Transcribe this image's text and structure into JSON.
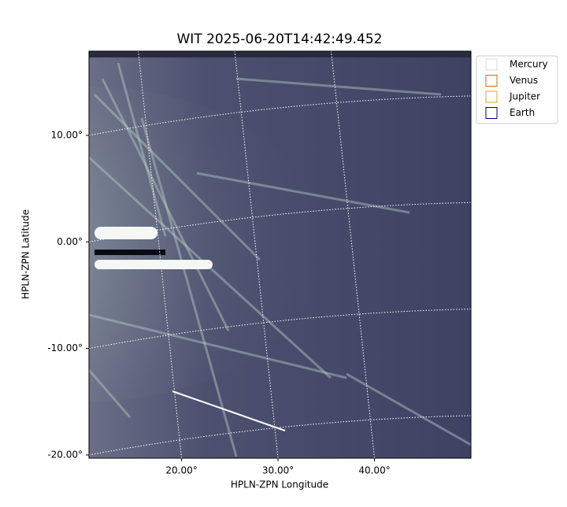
{
  "chart_data": {
    "type": "image",
    "title": "WIT 2025-06-20T14:42:49.452",
    "x_label": "HPLN-ZPN Longitude",
    "y_label": "HPLN-ZPN Latitude",
    "xlim": [
      10.4,
      50
    ],
    "ylim": [
      -20.3,
      17.9
    ],
    "xticks": [
      {
        "value": 20,
        "label": "20.00°"
      },
      {
        "value": 30,
        "label": "30.00°"
      },
      {
        "value": 40,
        "label": "40.00°"
      }
    ],
    "yticks": [
      {
        "value": 10,
        "label": "10.00°"
      },
      {
        "value": 0,
        "label": "0.00°"
      },
      {
        "value": -10,
        "label": "-10.00°"
      },
      {
        "value": -20,
        "label": "-20.00°"
      }
    ],
    "grid": true,
    "legend_position": "outside-upper-right",
    "legend": [
      {
        "name": "Mercury",
        "color": "#d9d9d9"
      },
      {
        "name": "Venus",
        "color": "#d2691e"
      },
      {
        "name": "Jupiter",
        "color": "#daa520"
      },
      {
        "name": "Earth",
        "color": "#000080"
      }
    ]
  }
}
